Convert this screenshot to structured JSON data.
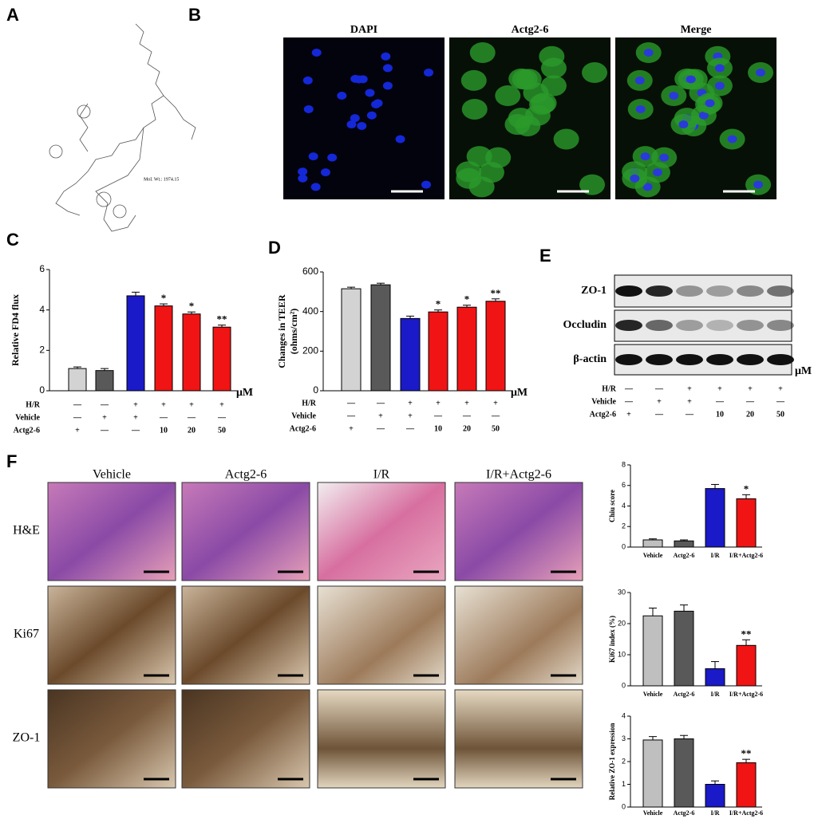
{
  "panel_labels": [
    "A",
    "B",
    "C",
    "D",
    "E",
    "F"
  ],
  "panel_a": {
    "mol_wt": "Mol. Wt.: 1974.15"
  },
  "panel_b": {
    "titles": [
      "DAPI",
      "Actg2-6",
      "Merge"
    ]
  },
  "panel_e": {
    "bands": [
      "ZO-1",
      "Occludin",
      "β-actin"
    ],
    "unit": "μM",
    "conditions": [
      {
        "name": "H/R",
        "values": [
          "—",
          "—",
          "+",
          "+",
          "+",
          "+"
        ]
      },
      {
        "name": "Vehicle",
        "values": [
          "—",
          "+",
          "+",
          "—",
          "—",
          "—"
        ]
      },
      {
        "name": "Actg2-6",
        "values": [
          "+",
          "—",
          "—",
          "10",
          "20",
          "50"
        ]
      }
    ]
  },
  "panel_f": {
    "columns": [
      "Vehicle",
      "Actg2-6",
      "I/R",
      "I/R+Actg2-6"
    ],
    "rows": [
      "H&E",
      "Ki67",
      "ZO-1"
    ]
  },
  "chart_data": [
    {
      "type": "bar",
      "y_label": "Relative FD4 flux",
      "ylim": [
        0,
        6
      ],
      "yticks": [
        0,
        2,
        4,
        6
      ],
      "values": [
        1.1,
        1.0,
        4.7,
        4.2,
        3.8,
        3.15
      ],
      "errors": [
        0.08,
        0.1,
        0.18,
        0.1,
        0.1,
        0.1
      ],
      "colors": [
        "#d3d3d3",
        "#595959",
        "#1a1ac8",
        "#f01414",
        "#f01414",
        "#f01414"
      ],
      "annotations": [
        null,
        null,
        null,
        "*",
        "*",
        "**"
      ],
      "unit": "μM",
      "conditions": [
        {
          "name": "H/R",
          "values": [
            "—",
            "—",
            "+",
            "+",
            "+",
            "+"
          ]
        },
        {
          "name": "Vehicle",
          "values": [
            "—",
            "+",
            "+",
            "—",
            "—",
            "—"
          ]
        },
        {
          "name": "Actg2-6",
          "values": [
            "+",
            "—",
            "—",
            "10",
            "20",
            "50"
          ]
        }
      ]
    },
    {
      "type": "bar",
      "y_label": [
        "Changes in TEER",
        "(ohms/cm²)"
      ],
      "ylim": [
        0,
        600
      ],
      "yticks": [
        0,
        200,
        400,
        600
      ],
      "values": [
        515,
        535,
        365,
        398,
        422,
        452
      ],
      "errors": [
        8,
        8,
        12,
        10,
        10,
        12
      ],
      "colors": [
        "#d3d3d3",
        "#595959",
        "#1a1ac8",
        "#f01414",
        "#f01414",
        "#f01414"
      ],
      "annotations": [
        null,
        null,
        null,
        "*",
        "*",
        "**"
      ],
      "unit": "μM",
      "conditions": [
        {
          "name": "H/R",
          "values": [
            "—",
            "—",
            "+",
            "+",
            "+",
            "+"
          ]
        },
        {
          "name": "Vehicle",
          "values": [
            "—",
            "+",
            "+",
            "—",
            "—",
            "—"
          ]
        },
        {
          "name": "Actg2-6",
          "values": [
            "+",
            "—",
            "—",
            "10",
            "20",
            "50"
          ]
        }
      ]
    },
    {
      "type": "bar",
      "y_label": "Chiu score",
      "ylim": [
        0,
        8
      ],
      "yticks": [
        0,
        2,
        4,
        6,
        8
      ],
      "categories": [
        "Vehicle",
        "Actg2-6",
        "I/R",
        "I/R+Actg2-6"
      ],
      "values": [
        0.7,
        0.6,
        5.7,
        4.7
      ],
      "errors": [
        0.1,
        0.1,
        0.4,
        0.4
      ],
      "colors": [
        "#bfbfbf",
        "#595959",
        "#1a1ac8",
        "#f01414"
      ],
      "annotations": [
        null,
        null,
        null,
        "*"
      ]
    },
    {
      "type": "bar",
      "y_label": "Ki67 index (%)",
      "ylim": [
        0,
        30
      ],
      "yticks": [
        0,
        10,
        20,
        30
      ],
      "categories": [
        "Vehicle",
        "Actg2-6",
        "I/R",
        "I/R+Actg2-6"
      ],
      "values": [
        22.5,
        24,
        5.5,
        13
      ],
      "errors": [
        2.5,
        2,
        2.3,
        1.8
      ],
      "colors": [
        "#bfbfbf",
        "#595959",
        "#1a1ac8",
        "#f01414"
      ],
      "annotations": [
        null,
        null,
        null,
        "**"
      ]
    },
    {
      "type": "bar",
      "y_label": "Relative ZO-1 expression",
      "ylim": [
        0,
        4
      ],
      "yticks": [
        0,
        1,
        2,
        3,
        4
      ],
      "categories": [
        "Vehicle",
        "Actg2-6",
        "I/R",
        "I/R+Actg2-6"
      ],
      "values": [
        2.95,
        3.0,
        1.0,
        1.95
      ],
      "errors": [
        0.15,
        0.15,
        0.15,
        0.15
      ],
      "colors": [
        "#bfbfbf",
        "#595959",
        "#1a1ac8",
        "#f01414"
      ],
      "annotations": [
        null,
        null,
        null,
        "**"
      ]
    }
  ]
}
